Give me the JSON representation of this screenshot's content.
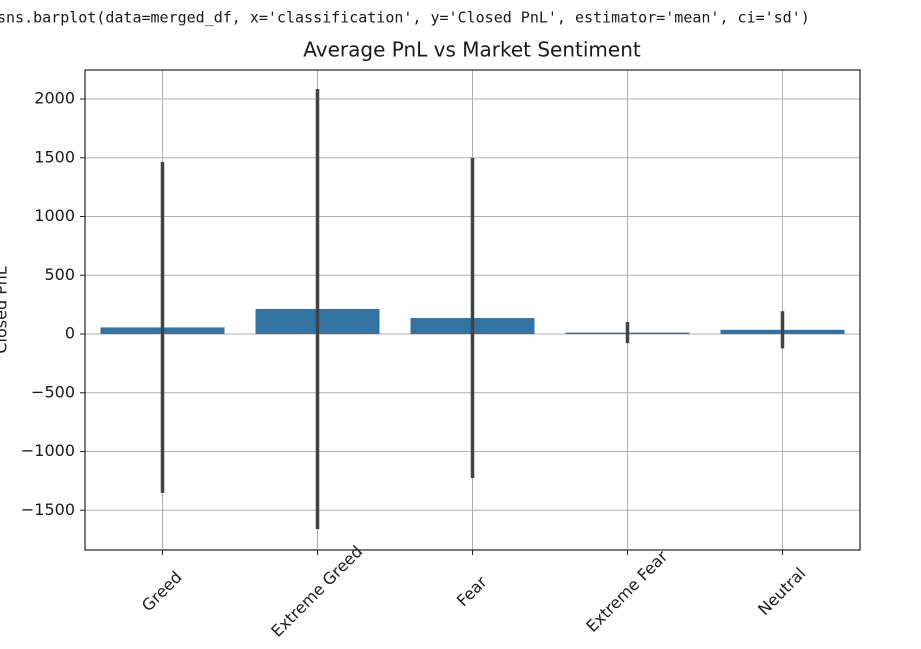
{
  "code": "sns.barplot(data=merged_df, x='classification', y='Closed PnL', estimator='mean', ci='sd')",
  "chart_data": {
    "type": "bar",
    "title": "Average PnL vs Market Sentiment",
    "y_label": "Closed PnL",
    "categories": [
      "Greed",
      "Extreme Greed",
      "Fear",
      "Extreme Fear",
      "Neutral"
    ],
    "values": [
      56,
      213,
      136,
      12,
      36
    ],
    "errors": [
      1408,
      1872,
      1362,
      90,
      158
    ],
    "color": "#3274a1",
    "error_color": "#424242",
    "ylim": [
      -1838,
      2247
    ],
    "yticks": [
      {
        "value": -1500,
        "label": "−1500"
      },
      {
        "value": -1000,
        "label": "−1000"
      },
      {
        "value": -500,
        "label": "−500"
      },
      0,
      500,
      1000,
      1500,
      2000
    ],
    "grid": true
  }
}
